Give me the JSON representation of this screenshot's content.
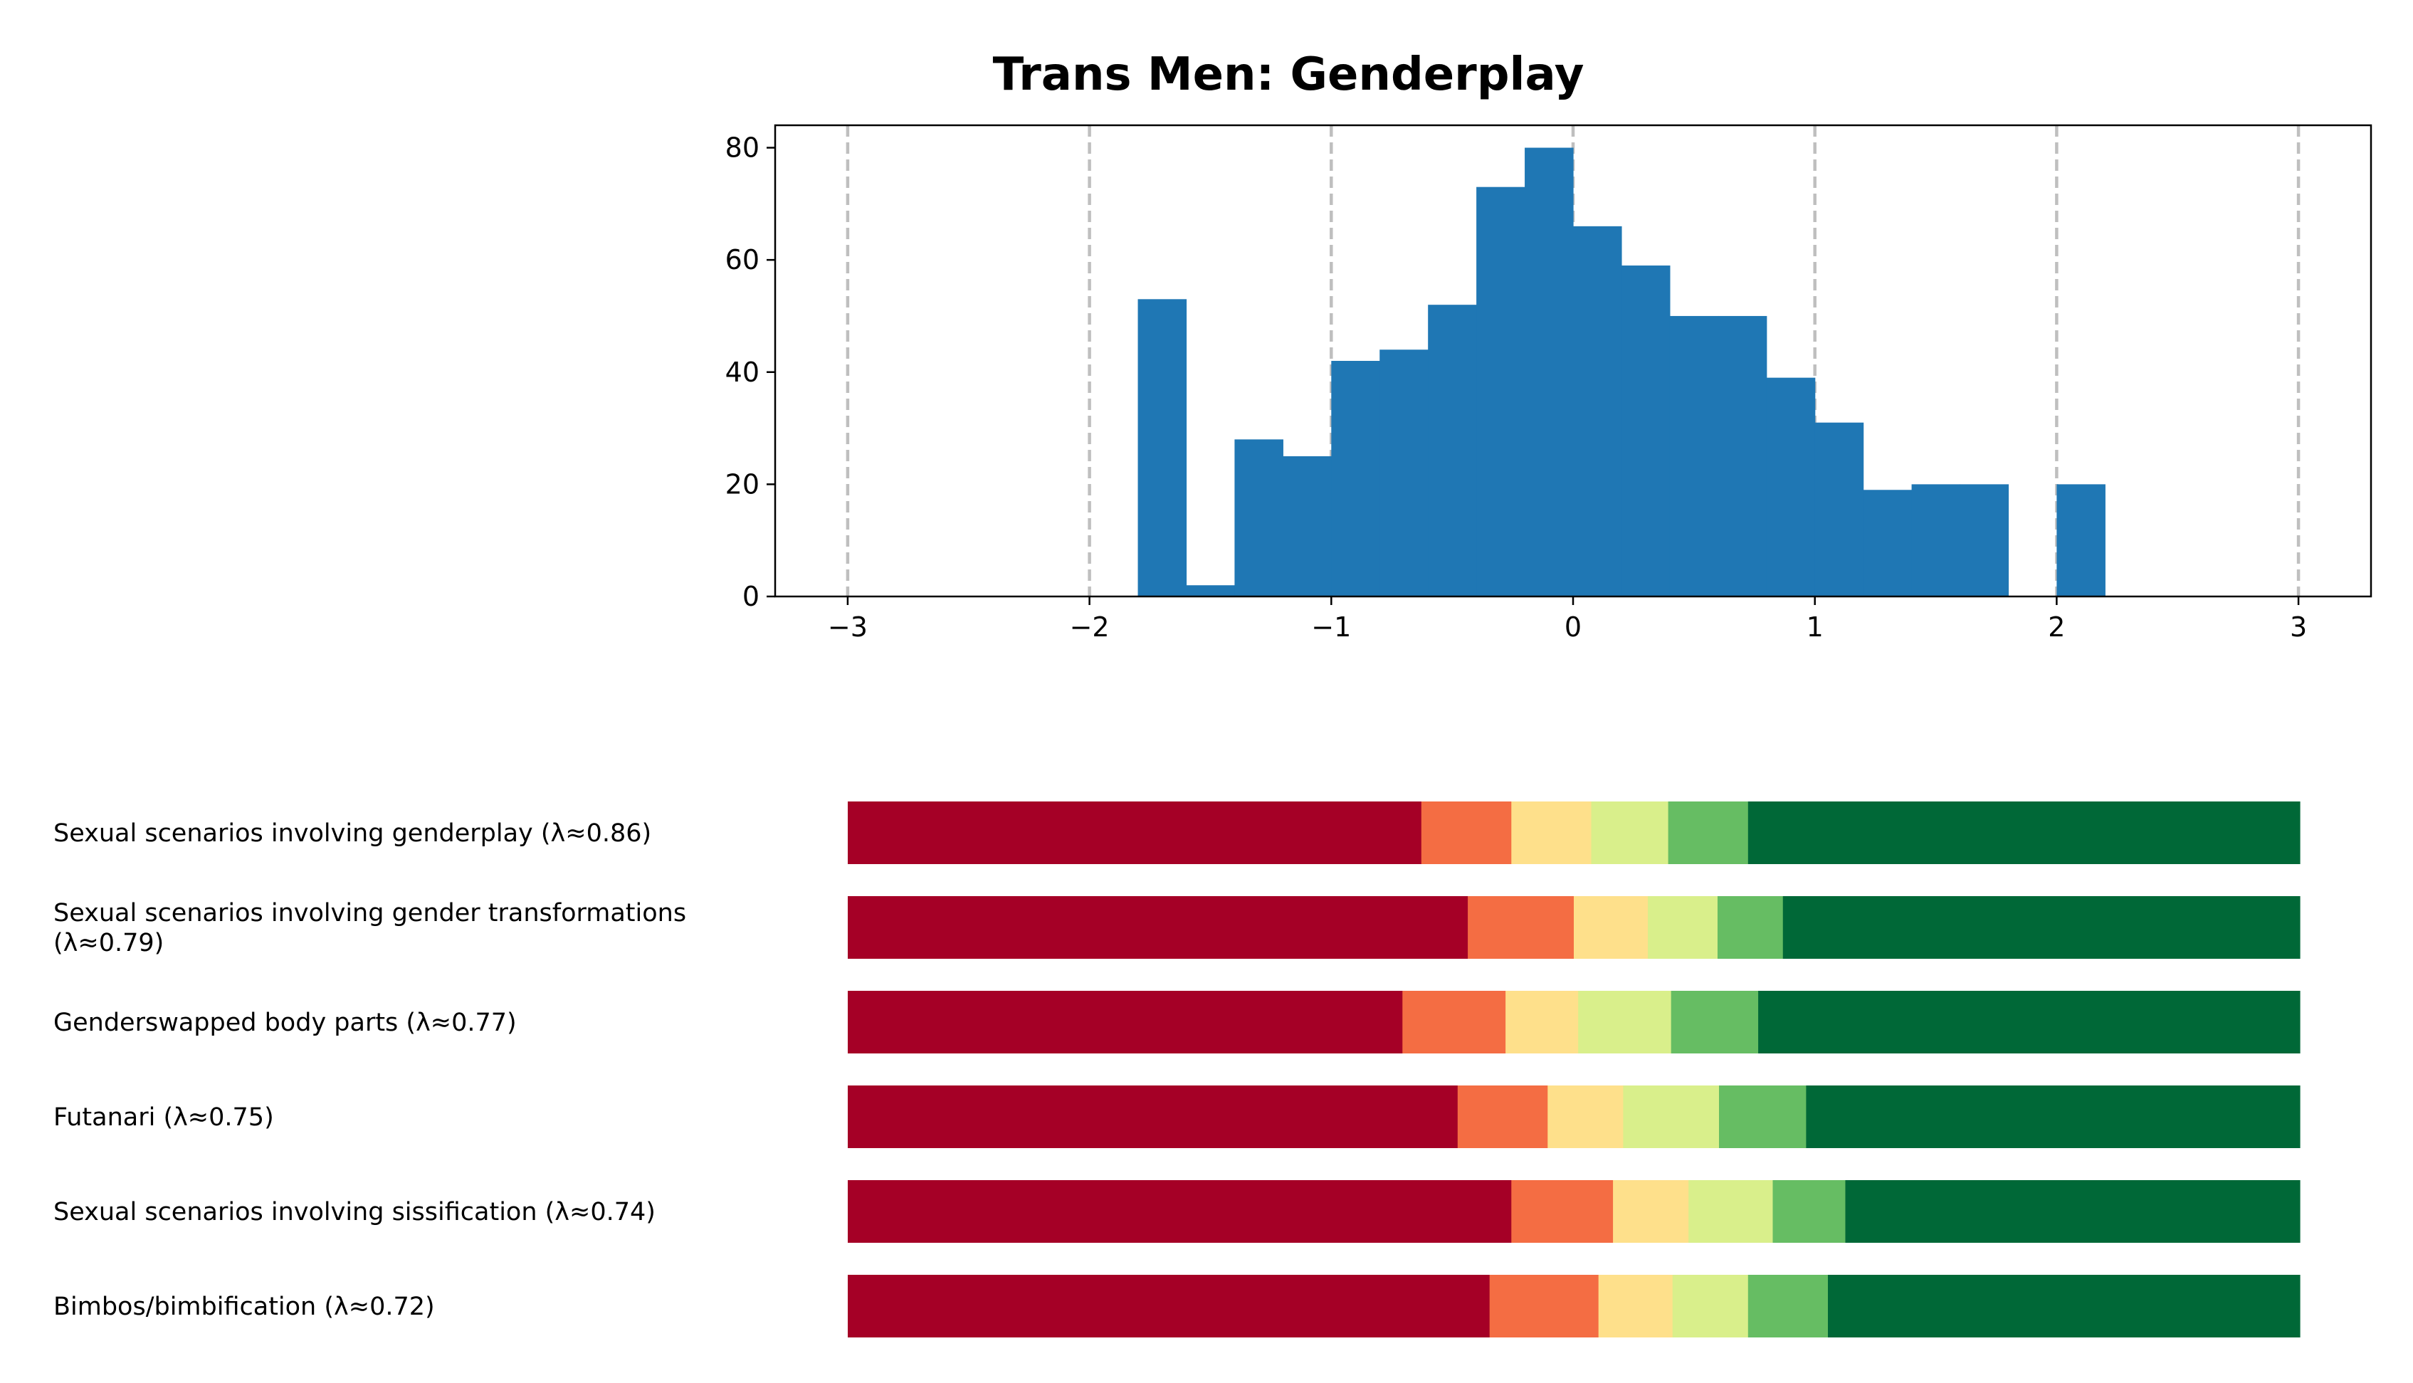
{
  "title": "Trans Men: Genderplay",
  "chart_data": [
    {
      "type": "bar",
      "subtype": "histogram",
      "bin_width": 0.2,
      "bin_starts": [
        -1.8,
        -1.6,
        -1.4,
        -1.2,
        -1.0,
        -0.8,
        -0.6,
        -0.4,
        -0.2,
        0.0,
        0.2,
        0.4,
        0.6,
        0.8,
        1.0,
        1.2,
        1.4,
        1.6,
        1.8,
        2.0
      ],
      "values": [
        53,
        2,
        28,
        25,
        42,
        44,
        52,
        73,
        80,
        66,
        59,
        50,
        50,
        39,
        31,
        19,
        20,
        20,
        0,
        20
      ],
      "color": "#1f77b4",
      "xlim": [
        -3.3,
        3.3
      ],
      "ylim": [
        0,
        84
      ],
      "x_ticks": [
        -3,
        -2,
        -1,
        0,
        1,
        2,
        3
      ],
      "x_tick_labels": [
        "−3",
        "−2",
        "−1",
        "0",
        "1",
        "2",
        "3"
      ],
      "y_ticks": [
        0,
        20,
        40,
        60,
        80
      ],
      "y_tick_labels": [
        "0",
        "20",
        "40",
        "60",
        "80"
      ],
      "vlines": [
        -3,
        -2,
        -1,
        0,
        1,
        2,
        3
      ],
      "vline_color": "#bfbfbf",
      "xlabel": "",
      "ylabel": ""
    },
    {
      "type": "bar",
      "subtype": "stacked-horizontal-percent",
      "colors": [
        "#a50026",
        "#f46d43",
        "#fee08b",
        "#d9ef8b",
        "#66bd63",
        "#006837"
      ],
      "rows": [
        {
          "label": [
            "Sexual scenarios involving genderplay (λ≈0.86)"
          ],
          "shares": [
            0.395,
            0.062,
            0.055,
            0.053,
            0.055,
            0.38
          ]
        },
        {
          "label": [
            "Sexual scenarios involving gender transformations",
            "(λ≈0.79)"
          ],
          "shares": [
            0.427,
            0.073,
            0.051,
            0.048,
            0.045,
            0.356
          ]
        },
        {
          "label": [
            "Genderswapped body parts (λ≈0.77)"
          ],
          "shares": [
            0.382,
            0.071,
            0.05,
            0.064,
            0.06,
            0.373
          ]
        },
        {
          "label": [
            "Futanari (λ≈0.75)"
          ],
          "shares": [
            0.42,
            0.062,
            0.052,
            0.066,
            0.06,
            0.34
          ]
        },
        {
          "label": [
            "Sexual scenarios involving sissification (λ≈0.74)"
          ],
          "shares": [
            0.457,
            0.07,
            0.052,
            0.058,
            0.05,
            0.313
          ]
        },
        {
          "label": [
            "Bimbos/bimbification (λ≈0.72)"
          ],
          "shares": [
            0.442,
            0.075,
            0.051,
            0.052,
            0.055,
            0.325
          ]
        }
      ]
    }
  ]
}
